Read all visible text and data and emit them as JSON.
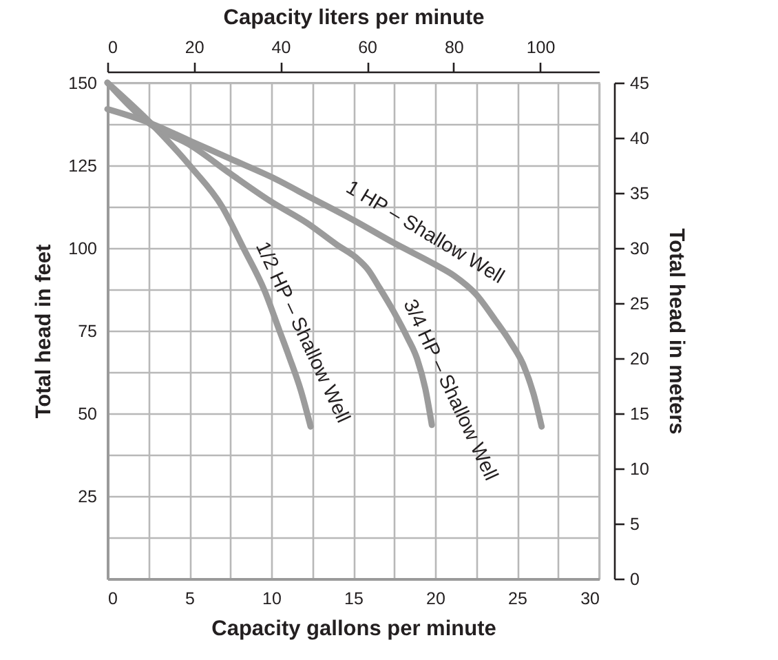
{
  "chart_data": {
    "type": "line",
    "xlabel": "Capacity gallons per minute",
    "ylabel": "Total head in feet",
    "y2label": "Total head in meters",
    "x2label": "Capacity liters per minute",
    "xlim": [
      0,
      30
    ],
    "xticks": [
      0,
      {
        "value": 2.5,
        "label": null
      },
      5,
      {
        "value": 7.5,
        "label": null
      },
      10,
      {
        "value": 12.5,
        "label": null
      },
      15,
      {
        "value": 17.5,
        "label": null
      },
      20,
      {
        "value": 22.5,
        "label": null
      },
      25,
      {
        "value": 27.5,
        "label": null
      },
      30
    ],
    "ylim": [
      0,
      150
    ],
    "yticks": [
      {
        "value": 0,
        "label": null
      },
      {
        "value": 12.5,
        "label": null
      },
      25,
      {
        "value": 37.5,
        "label": null
      },
      50,
      {
        "value": 62.5,
        "label": null
      },
      75,
      {
        "value": 87.5,
        "label": null
      },
      100,
      {
        "value": 112.5,
        "label": null
      },
      125,
      {
        "value": 137.5,
        "label": null
      },
      150
    ],
    "x2lim": [
      0,
      113.6
    ],
    "x2ticks": [
      0,
      20,
      40,
      60,
      80,
      100
    ],
    "y2lim": [
      0,
      45
    ],
    "y2ticks": [
      0,
      5,
      10,
      15,
      20,
      25,
      30,
      35,
      40,
      45
    ],
    "grid": true,
    "series": [
      {
        "name": "1/2 HP – Shallow Well",
        "color": "#9b9b9b",
        "x": [
          0,
          2.7,
          5.1,
          7.0,
          8.3,
          9.6,
          10.5,
          11.1,
          11.8,
          12.4
        ],
        "values": [
          150,
          137.5,
          124.5,
          112.5,
          100,
          87,
          75,
          67,
          57,
          46
        ]
      },
      {
        "name": "3/4 HP – Shallow Well",
        "color": "#9b9b9b",
        "x": [
          0,
          2.6,
          5.1,
          7.5,
          10,
          12.2,
          14,
          15.2,
          15.9,
          16.6,
          17.5,
          18.3,
          18.9,
          19.4,
          19.8
        ],
        "values": [
          150,
          137.5,
          131,
          122.5,
          114,
          107.5,
          101,
          97,
          93.5,
          88,
          80.5,
          73,
          66.5,
          57.5,
          46.5
        ]
      },
      {
        "name": "1 HP – Shallow Well",
        "color": "#9b9b9b",
        "x": [
          0,
          2.5,
          5,
          7.5,
          10,
          12.5,
          15,
          17.5,
          20,
          21.2,
          22.5,
          23.7,
          24.6,
          25.4,
          26,
          26.5
        ],
        "values": [
          142,
          138,
          132.5,
          127,
          121.5,
          115,
          108.5,
          101.5,
          95,
          91.5,
          86,
          78,
          71.5,
          64.5,
          56,
          46
        ]
      }
    ]
  }
}
